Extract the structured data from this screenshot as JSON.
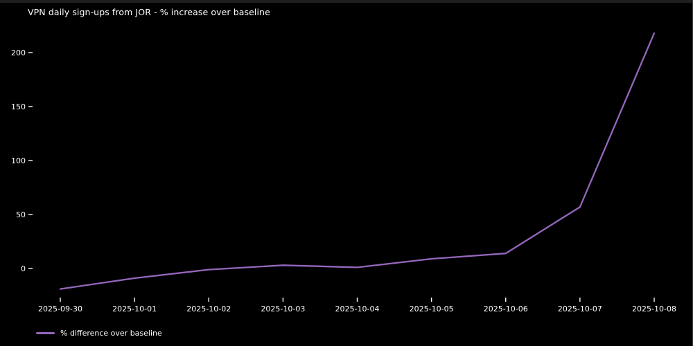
{
  "window": {
    "background": "#000000",
    "top_edge_color": "#1f1f1f",
    "text_color": "#ffffff"
  },
  "chart_data": {
    "type": "line",
    "title": "VPN daily sign-ups from JOR - % increase over baseline",
    "x": [
      "2025-09-30",
      "2025-10-01",
      "2025-10-02",
      "2025-10-03",
      "2025-10-04",
      "2025-10-05",
      "2025-10-06",
      "2025-10-07",
      "2025-10-08"
    ],
    "series": [
      {
        "name": "% difference over baseline",
        "color": "#9467bd",
        "values": [
          -19,
          -9,
          -1,
          3,
          1,
          9,
          14,
          57,
          218
        ]
      }
    ],
    "yticks": [
      0,
      50,
      100,
      150,
      200
    ],
    "ylim": [
      -30,
      223
    ],
    "xlabel": "",
    "ylabel": "",
    "grid": false,
    "legend_position": "lower-left",
    "tick_color": "#ffffff",
    "text_color": "#ffffff",
    "background": "#000000"
  }
}
